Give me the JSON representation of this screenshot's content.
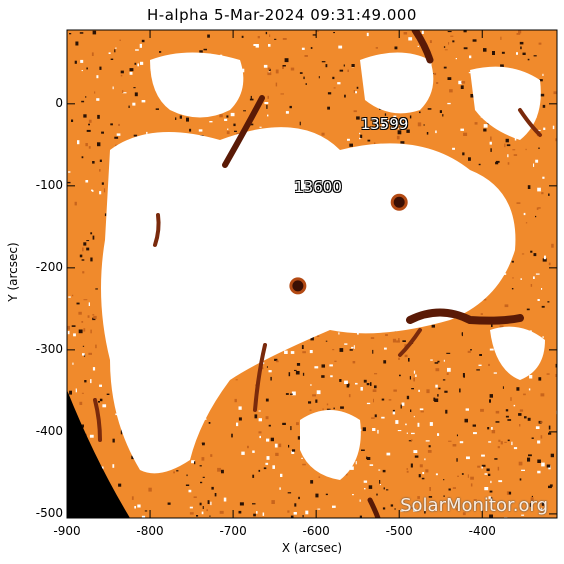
{
  "figure": {
    "title": "H-alpha   5-Mar-2024 09:31:49.000",
    "xlabel": "X (arcsec)",
    "ylabel": "Y (arcsec)",
    "watermark": "SolarMonitor.org",
    "colors": {
      "background": "#ffffff",
      "active_region": "#f08a2c",
      "filament": "#5a1a06",
      "space": "#000000"
    }
  },
  "chart_data": {
    "type": "heatmap",
    "x_axis": {
      "range": [
        -900,
        -310
      ],
      "ticks": [
        -900,
        -800,
        -700,
        -600,
        -500,
        -400
      ],
      "tick_labels": [
        "-900",
        "-800",
        "-700",
        "-600",
        "-500",
        "-400"
      ]
    },
    "y_axis": {
      "range": [
        -505,
        90
      ],
      "ticks": [
        0,
        -100,
        -200,
        -300,
        -400,
        -500
      ],
      "tick_labels": [
        "0",
        "-100",
        "-200",
        "-300",
        "-400",
        "-500"
      ]
    },
    "active_regions": [
      {
        "label": "13599",
        "x": -520,
        "y": -25
      },
      {
        "label": "13600",
        "x": -600,
        "y": -102
      }
    ],
    "spots": [
      {
        "x": -500,
        "y": -120
      },
      {
        "x": -622,
        "y": -222
      }
    ]
  }
}
